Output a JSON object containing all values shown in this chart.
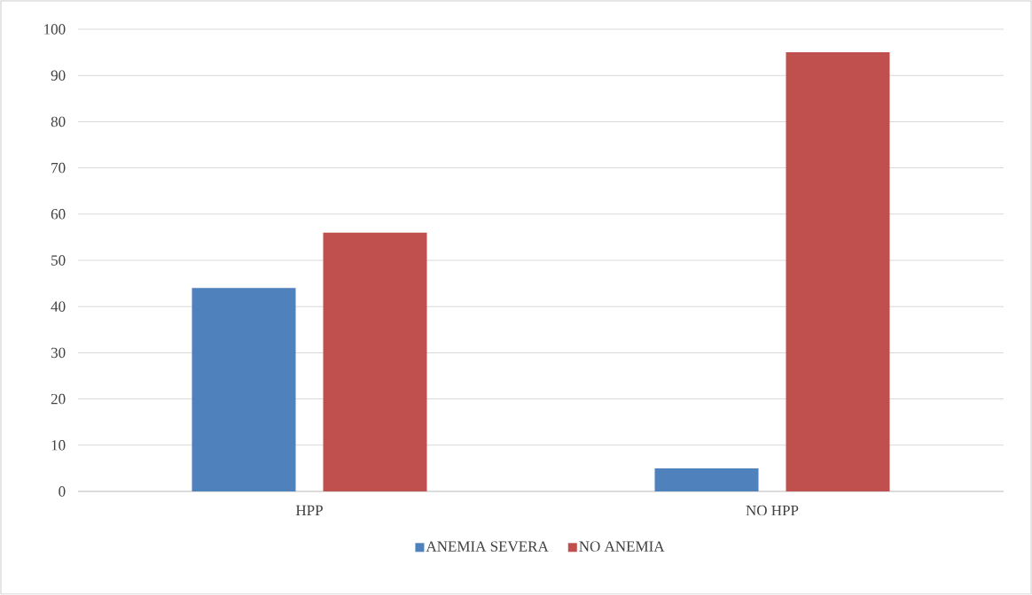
{
  "chart_data": {
    "type": "bar",
    "categories": [
      "HPP",
      "NO HPP"
    ],
    "series": [
      {
        "name": "ANEMIA SEVERA",
        "color": "#4f81bd",
        "values": [
          44,
          5
        ]
      },
      {
        "name": "NO ANEMIA",
        "color": "#c0504d",
        "values": [
          56,
          95
        ]
      }
    ],
    "ylim": [
      0,
      100
    ],
    "yticks": [
      0,
      10,
      20,
      30,
      40,
      50,
      60,
      70,
      80,
      90,
      100
    ],
    "grid": "y",
    "legend": "bottom"
  }
}
